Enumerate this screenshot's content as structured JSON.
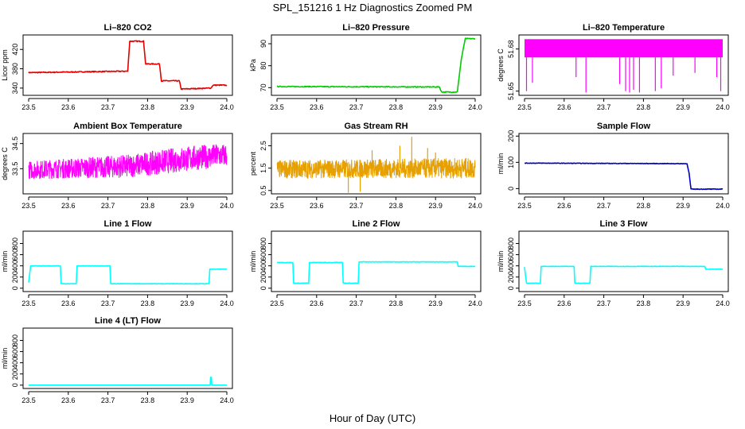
{
  "suptitle": "SPL_151216  1 Hz Diagnostics Zoomed PM",
  "xlabel": "Hour of Day (UTC)",
  "chart_data": [
    {
      "type": "line",
      "title": "Li–820 CO2",
      "ylabel": "Licor ppm",
      "color": "#e60000",
      "noise": 1,
      "xlim": [
        23.5,
        24.0
      ],
      "xticks": [
        "23.5",
        "23.6",
        "23.7",
        "23.8",
        "23.9",
        "24.0"
      ],
      "ylim": [
        325,
        450
      ],
      "yticks": [
        340,
        380,
        420
      ],
      "x": [
        23.5,
        23.75,
        23.755,
        23.79,
        23.795,
        23.83,
        23.835,
        23.88,
        23.885,
        23.96,
        23.965,
        24.0
      ],
      "y": [
        372,
        375,
        437,
        437,
        390,
        390,
        355,
        355,
        338,
        340,
        346,
        346
      ]
    },
    {
      "type": "line",
      "title": "Li–820 Pressure",
      "ylabel": "kPa",
      "color": "#00cc00",
      "noise": 0.2,
      "xlim": [
        23.5,
        24.0
      ],
      "xticks": [
        "23.5",
        "23.6",
        "23.7",
        "23.8",
        "23.9",
        "24.0"
      ],
      "ylim": [
        66.5,
        94.0
      ],
      "yticks": [
        70,
        80,
        90
      ],
      "x": [
        23.5,
        23.91,
        23.915,
        23.955,
        23.965,
        23.975,
        24.0
      ],
      "y": [
        70.5,
        70.3,
        68.0,
        68.0,
        83,
        92.3,
        92.3
      ]
    },
    {
      "type": "band",
      "title": "Li–820 Temperature",
      "ylabel": "degrees C",
      "color": "#ff00ff",
      "xlim": [
        23.5,
        24.0
      ],
      "xticks": [
        "23.5",
        "23.6",
        "23.7",
        "23.8",
        "23.9",
        "24.0"
      ],
      "ylim": [
        51.647,
        51.69
      ],
      "yticks": [
        "51.65",
        "51.68"
      ],
      "band": [
        51.674,
        51.687
      ],
      "spikes": [
        [
          23.505,
          51.65
        ],
        [
          23.52,
          51.656
        ],
        [
          23.63,
          51.66
        ],
        [
          23.655,
          51.649
        ],
        [
          23.74,
          51.655
        ],
        [
          23.755,
          51.65
        ],
        [
          23.765,
          51.649
        ],
        [
          23.775,
          51.651
        ],
        [
          23.79,
          51.649
        ],
        [
          23.83,
          51.65
        ],
        [
          23.845,
          51.652
        ],
        [
          23.875,
          51.661
        ],
        [
          23.93,
          51.663
        ],
        [
          23.985,
          51.66
        ],
        [
          23.995,
          51.65
        ]
      ]
    },
    {
      "type": "line",
      "title": "Ambient Box Temperature",
      "ylabel": "degrees C",
      "color": "#ff00ff",
      "style": "noise",
      "xlim": [
        23.5,
        24.0
      ],
      "xticks": [
        "23.5",
        "23.6",
        "23.7",
        "23.8",
        "23.9",
        "24.0"
      ],
      "ylim": [
        32.5,
        34.9
      ],
      "yticks": [
        "33.5",
        "34.5"
      ],
      "x": [
        23.5,
        23.75,
        23.9,
        24.0
      ],
      "y": [
        33.45,
        33.6,
        33.9,
        34.05
      ],
      "amplitude": [
        0.35,
        0.45,
        0.5,
        0.45
      ]
    },
    {
      "type": "line",
      "title": "Gas Stream RH",
      "ylabel": "percent",
      "color": "#e6a000",
      "style": "noise",
      "xlim": [
        23.5,
        24.0
      ],
      "xticks": [
        "23.5",
        "23.6",
        "23.7",
        "23.8",
        "23.9",
        "24.0"
      ],
      "ylim": [
        0.35,
        3.05
      ],
      "yticks": [
        "0.5",
        "1.5",
        "2.5"
      ],
      "x": [
        23.5,
        24.0
      ],
      "y": [
        1.45,
        1.5
      ],
      "amplitude": [
        0.4,
        0.45
      ],
      "spikes": [
        [
          23.68,
          0.4
        ],
        [
          23.71,
          0.45
        ],
        [
          23.74,
          2.3
        ],
        [
          23.81,
          2.5
        ],
        [
          23.84,
          2.9
        ],
        [
          23.88,
          2.4
        ],
        [
          23.9,
          2.2
        ]
      ]
    },
    {
      "type": "line",
      "title": "Sample Flow",
      "ylabel": "ml/min",
      "color": "#0000cc",
      "noise": 1,
      "xlim": [
        23.5,
        24.0
      ],
      "xticks": [
        "23.5",
        "23.6",
        "23.7",
        "23.8",
        "23.9",
        "24.0"
      ],
      "ylim": [
        -20,
        210
      ],
      "yticks": [
        0,
        100,
        200
      ],
      "x": [
        23.5,
        23.91,
        23.915,
        23.92,
        24.0
      ],
      "y": [
        97,
        95,
        60,
        -2,
        -2
      ]
    },
    {
      "type": "line",
      "title": "Line 1 Flow",
      "ylabel": "ml/min",
      "color": "#00ffff",
      "noise": 4,
      "xlim": [
        23.5,
        24.0
      ],
      "xticks": [
        "23.5",
        "23.6",
        "23.7",
        "23.8",
        "23.9",
        "24.0"
      ],
      "ylim": [
        -60,
        1020
      ],
      "yticks": [
        0,
        200,
        400,
        600,
        800
      ],
      "x": [
        23.5,
        23.505,
        23.58,
        23.582,
        23.62,
        23.622,
        23.705,
        23.707,
        23.955,
        23.957,
        24.0
      ],
      "y": [
        100,
        400,
        400,
        80,
        80,
        400,
        400,
        80,
        80,
        340,
        340
      ]
    },
    {
      "type": "line",
      "title": "Line 2 Flow",
      "ylabel": "ml/min",
      "color": "#00ffff",
      "noise": 4,
      "xlim": [
        23.5,
        24.0
      ],
      "xticks": [
        "23.5",
        "23.6",
        "23.7",
        "23.8",
        "23.9",
        "24.0"
      ],
      "ylim": [
        -60,
        1020
      ],
      "yticks": [
        0,
        200,
        400,
        600,
        800
      ],
      "x": [
        23.5,
        23.54,
        23.542,
        23.58,
        23.582,
        23.665,
        23.667,
        23.705,
        23.707,
        23.955,
        23.957,
        24.0
      ],
      "y": [
        460,
        460,
        90,
        90,
        460,
        460,
        90,
        90,
        470,
        470,
        390,
        390
      ]
    },
    {
      "type": "line",
      "title": "Line 3 Flow",
      "ylabel": "ml/min",
      "color": "#00ffff",
      "noise": 4,
      "xlim": [
        23.5,
        24.0
      ],
      "xticks": [
        "23.5",
        "23.6",
        "23.7",
        "23.8",
        "23.9",
        "24.0"
      ],
      "ylim": [
        -60,
        1020
      ],
      "yticks": [
        0,
        200,
        400,
        600,
        800
      ],
      "x": [
        23.5,
        23.505,
        23.54,
        23.542,
        23.625,
        23.627,
        23.665,
        23.667,
        23.955,
        23.957,
        24.0
      ],
      "y": [
        380,
        90,
        90,
        390,
        390,
        90,
        90,
        390,
        390,
        340,
        340
      ]
    },
    {
      "type": "line",
      "title": "Line 4 (LT) Flow",
      "ylabel": "ml/min",
      "color": "#00ffff",
      "noise": 0.5,
      "xlim": [
        23.5,
        24.0
      ],
      "xticks": [
        "23.5",
        "23.6",
        "23.7",
        "23.8",
        "23.9",
        "24.0"
      ],
      "ylim": [
        -60,
        1020
      ],
      "yticks": [
        0,
        200,
        400,
        600,
        800
      ],
      "x": [
        23.5,
        23.958,
        23.959,
        23.961,
        23.962,
        24.0
      ],
      "y": [
        0,
        0,
        140,
        140,
        0,
        0
      ]
    }
  ]
}
